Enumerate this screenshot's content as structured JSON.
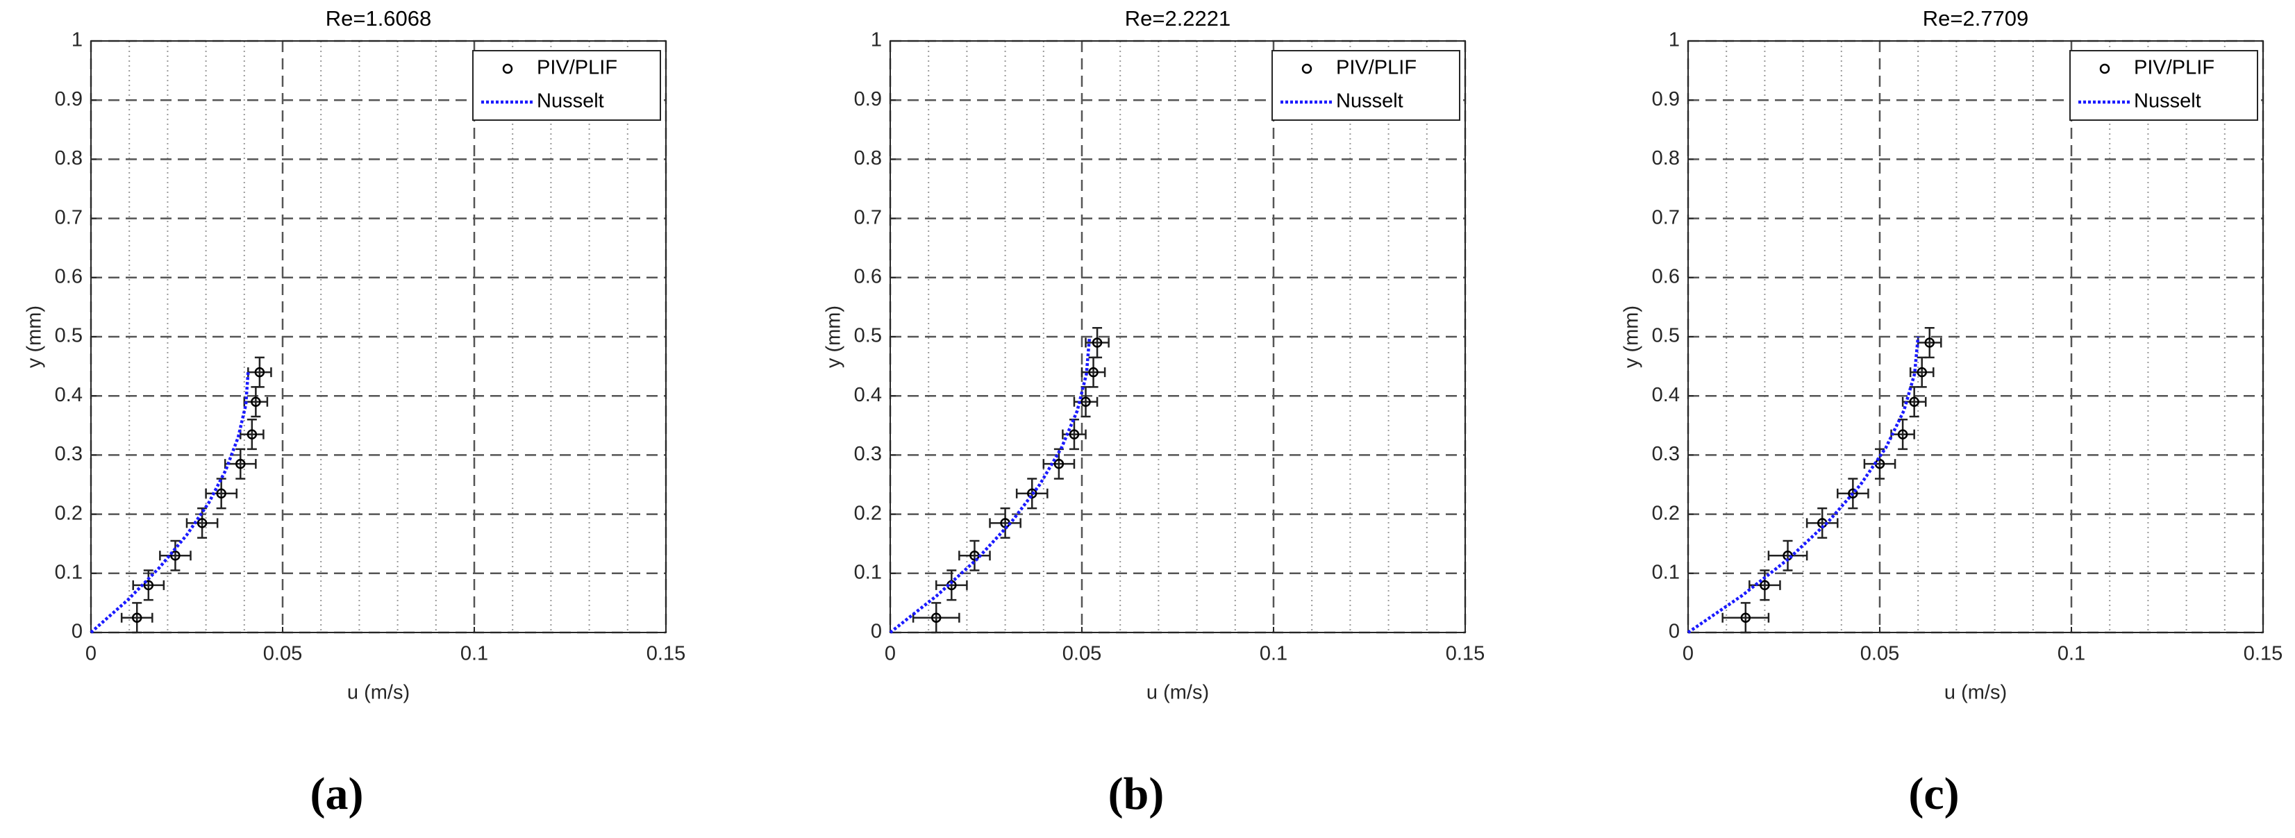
{
  "chart_data": [
    {
      "type": "scatter",
      "title": "Re=1.6068",
      "xlabel": "u (m/s)",
      "ylabel": "y (mm)",
      "panel_label": "(a)",
      "xlim": [
        0,
        0.15
      ],
      "ylim": [
        0,
        1
      ],
      "xticks": [
        0,
        0.05,
        0.1,
        0.15
      ],
      "yticks": [
        0,
        0.1,
        0.2,
        0.3,
        0.4,
        0.5,
        0.6,
        0.7,
        0.8,
        0.9,
        1
      ],
      "minor_xticks": [
        0.01,
        0.02,
        0.03,
        0.04,
        0.06,
        0.07,
        0.08,
        0.09,
        0.11,
        0.12,
        0.13,
        0.14
      ],
      "grid": true,
      "legend": "northeast",
      "series": [
        {
          "name": "PIV/PLIF",
          "color": "#000000",
          "mode": "markers",
          "x": [
            0.012,
            0.015,
            0.022,
            0.029,
            0.034,
            0.039,
            0.042,
            0.043,
            0.044
          ],
          "values": [
            0.025,
            0.08,
            0.13,
            0.185,
            0.235,
            0.285,
            0.335,
            0.39,
            0.44
          ],
          "x_errors": [
            0.004,
            0.004,
            0.004,
            0.004,
            0.004,
            0.004,
            0.003,
            0.003,
            0.003
          ],
          "y_errors": [
            0.025,
            0.025,
            0.025,
            0.025,
            0.025,
            0.025,
            0.025,
            0.025,
            0.025
          ]
        },
        {
          "name": "Nusselt",
          "color": "#1a1aff",
          "mode": "line",
          "x": [
            0,
            0.0096,
            0.0179,
            0.025,
            0.0308,
            0.0352,
            0.0384,
            0.0404,
            0.041
          ],
          "values": [
            0,
            0.055,
            0.11,
            0.165,
            0.22,
            0.275,
            0.33,
            0.385,
            0.44
          ]
        }
      ]
    },
    {
      "type": "scatter",
      "title": "Re=2.2221",
      "xlabel": "u (m/s)",
      "ylabel": "y (mm)",
      "panel_label": "(b)",
      "xlim": [
        0,
        0.15
      ],
      "ylim": [
        0,
        1
      ],
      "xticks": [
        0,
        0.05,
        0.1,
        0.15
      ],
      "yticks": [
        0,
        0.1,
        0.2,
        0.3,
        0.4,
        0.5,
        0.6,
        0.7,
        0.8,
        0.9,
        1
      ],
      "minor_xticks": [
        0.01,
        0.02,
        0.03,
        0.04,
        0.06,
        0.07,
        0.08,
        0.09,
        0.11,
        0.12,
        0.13,
        0.14
      ],
      "grid": true,
      "legend": "northeast",
      "series": [
        {
          "name": "PIV/PLIF",
          "color": "#000000",
          "mode": "markers",
          "x": [
            0.012,
            0.016,
            0.022,
            0.03,
            0.037,
            0.044,
            0.048,
            0.051,
            0.053,
            0.054
          ],
          "values": [
            0.025,
            0.08,
            0.13,
            0.185,
            0.235,
            0.285,
            0.335,
            0.39,
            0.44,
            0.49
          ],
          "x_errors": [
            0.006,
            0.004,
            0.004,
            0.004,
            0.004,
            0.004,
            0.003,
            0.003,
            0.003,
            0.003
          ],
          "y_errors": [
            0.025,
            0.025,
            0.025,
            0.025,
            0.025,
            0.025,
            0.025,
            0.025,
            0.025,
            0.025
          ]
        },
        {
          "name": "Nusselt",
          "color": "#1a1aff",
          "mode": "line",
          "x": [
            0,
            0.0122,
            0.0228,
            0.0317,
            0.039,
            0.0447,
            0.0488,
            0.0512,
            0.052
          ],
          "values": [
            0,
            0.0625,
            0.125,
            0.1875,
            0.25,
            0.3125,
            0.375,
            0.4375,
            0.5
          ]
        }
      ]
    },
    {
      "type": "scatter",
      "title": "Re=2.7709",
      "xlabel": "u (m/s)",
      "ylabel": "y (mm)",
      "panel_label": "(c)",
      "xlim": [
        0,
        0.15
      ],
      "ylim": [
        0,
        1
      ],
      "xticks": [
        0,
        0.05,
        0.1,
        0.15
      ],
      "yticks": [
        0,
        0.1,
        0.2,
        0.3,
        0.4,
        0.5,
        0.6,
        0.7,
        0.8,
        0.9,
        1
      ],
      "minor_xticks": [
        0.01,
        0.02,
        0.03,
        0.04,
        0.06,
        0.07,
        0.08,
        0.09,
        0.11,
        0.12,
        0.13,
        0.14
      ],
      "grid": true,
      "legend": "northeast",
      "series": [
        {
          "name": "PIV/PLIF",
          "color": "#000000",
          "mode": "markers",
          "x": [
            0.015,
            0.02,
            0.026,
            0.035,
            0.043,
            0.05,
            0.056,
            0.059,
            0.061,
            0.063
          ],
          "values": [
            0.025,
            0.08,
            0.13,
            0.185,
            0.235,
            0.285,
            0.335,
            0.39,
            0.44,
            0.49
          ],
          "x_errors": [
            0.006,
            0.004,
            0.005,
            0.004,
            0.004,
            0.004,
            0.003,
            0.003,
            0.003,
            0.003
          ],
          "y_errors": [
            0.025,
            0.025,
            0.025,
            0.025,
            0.025,
            0.025,
            0.025,
            0.025,
            0.025,
            0.025
          ]
        },
        {
          "name": "Nusselt",
          "color": "#1a1aff",
          "mode": "line",
          "x": [
            0,
            0.0141,
            0.0263,
            0.0366,
            0.045,
            0.0516,
            0.0563,
            0.0591,
            0.06
          ],
          "values": [
            0,
            0.0625,
            0.125,
            0.1875,
            0.25,
            0.3125,
            0.375,
            0.4375,
            0.5
          ]
        }
      ]
    }
  ]
}
